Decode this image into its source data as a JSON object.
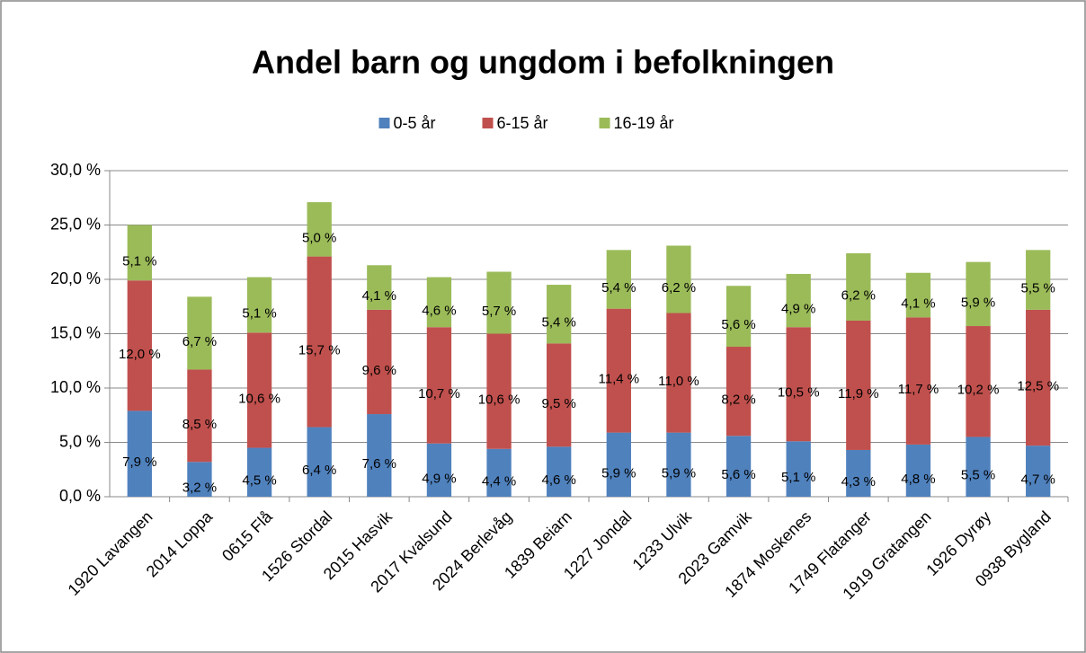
{
  "chart_data": {
    "type": "stacked_bar",
    "title": "Andel barn og ungdom i befolkningen",
    "categories": [
      "1920 Lavangen",
      "2014 Loppa",
      "0615 Flå",
      "1526 Stordal",
      "2015 Hasvik",
      "2017 Kvalsund",
      "2024 Berlevåg",
      "1839 Beiarn",
      "1227 Jondal",
      "1233 Ulvik",
      "2023 Gamvik",
      "1874 Moskenes",
      "1749 Flatanger",
      "1919 Gratangen",
      "1926 Dyrøy",
      "0938 Bygland"
    ],
    "series": [
      {
        "name": "0-5 år",
        "color": "#4f81bd",
        "values": [
          7.9,
          3.2,
          4.5,
          6.4,
          7.6,
          4.9,
          4.4,
          4.6,
          5.9,
          5.9,
          5.6,
          5.1,
          4.3,
          4.8,
          5.5,
          4.7
        ],
        "value_labels": [
          "7,9 %",
          "3,2 %",
          "4,5 %",
          "6,4 %",
          "7,6 %",
          "4,9 %",
          "4,4 %",
          "4,6 %",
          "5,9 %",
          "5,9 %",
          "5,6 %",
          "5,1 %",
          "4,3 %",
          "4,8 %",
          "5,5 %",
          "4,7 %"
        ]
      },
      {
        "name": "6-15 år",
        "color": "#c0504d",
        "values": [
          12.0,
          8.5,
          10.6,
          15.7,
          9.6,
          10.7,
          10.6,
          9.5,
          11.4,
          11.0,
          8.2,
          10.5,
          11.9,
          11.7,
          10.2,
          12.5
        ],
        "value_labels": [
          "12,0 %",
          "8,5 %",
          "10,6 %",
          "15,7 %",
          "9,6 %",
          "10,7 %",
          "10,6 %",
          "9,5 %",
          "11,4 %",
          "11,0 %",
          "8,2 %",
          "10,5 %",
          "11,9 %",
          "11,7 %",
          "10,2 %",
          "12,5 %"
        ]
      },
      {
        "name": "16-19 år",
        "color": "#9bbb59",
        "values": [
          5.1,
          6.7,
          5.1,
          5.0,
          4.1,
          4.6,
          5.7,
          5.4,
          5.4,
          6.2,
          5.6,
          4.9,
          6.2,
          4.1,
          5.9,
          5.5
        ],
        "value_labels": [
          "5,1 %",
          "6,7 %",
          "5,1 %",
          "5,0 %",
          "4,1 %",
          "4,6 %",
          "5,7 %",
          "5,4 %",
          "5,4 %",
          "6,2 %",
          "5,6 %",
          "4,9 %",
          "6,2 %",
          "4,1 %",
          "5,9 %",
          "5,5 %"
        ]
      }
    ],
    "ylim": [
      0,
      30
    ],
    "yticks": [
      {
        "value": 0,
        "label": "0,0 %"
      },
      {
        "value": 5,
        "label": "5,0 %"
      },
      {
        "value": 10,
        "label": "10,0 %"
      },
      {
        "value": 15,
        "label": "15,0 %"
      },
      {
        "value": 20,
        "label": "20,0 %"
      },
      {
        "value": 25,
        "label": "25,0 %"
      },
      {
        "value": 30,
        "label": "30,0 %"
      }
    ],
    "grid": true,
    "legend": "top"
  }
}
